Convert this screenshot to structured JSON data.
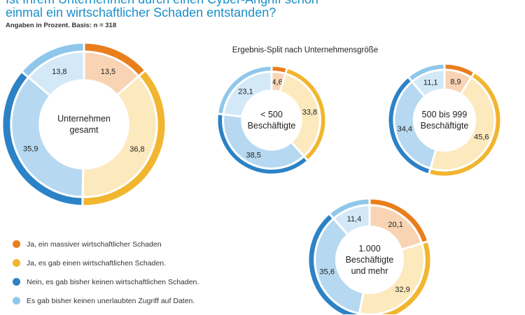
{
  "header": {
    "title_line1": "Ist Ihrem Unternehmen durch einen Cyber-Angriff schon",
    "title_line2": "einmal ein wirtschaftlicher Schaden entstanden?",
    "subtitle": "Angaben in Prozent. Basis: n = 318"
  },
  "split_title": "Ergebnis-Split nach Unternehmensgröße",
  "legend": [
    {
      "label": "Ja, ein massiver wirtschaftlicher Schaden",
      "color": "#e97e1c"
    },
    {
      "label": "Ja, es gab einen wirtschaftlichen Schaden.",
      "color": "#f1b52f"
    },
    {
      "label": "Nein, es gab bisher keinen wirtschaftlichen Schaden.",
      "color": "#2c82c6"
    },
    {
      "label": "Es gab bisher keinen unerlaubten Zugriff auf Daten.",
      "color": "#8fc7ea"
    }
  ],
  "chart_data": [
    {
      "type": "pie",
      "center_label": [
        "Unternehmen",
        "gesamt"
      ],
      "categories": [
        "Ja, ein massiver wirtschaftlicher Schaden",
        "Ja, es gab einen wirtschaftlichen Schaden.",
        "Nein, es gab bisher keinen wirtschaftlichen Schaden.",
        "Es gab bisher keinen unerlaubten Zugriff auf Daten."
      ],
      "values": [
        13.5,
        36.8,
        35.9,
        13.8
      ],
      "labels": [
        "13,5",
        "36,8",
        "35,9",
        "13,8"
      ]
    },
    {
      "type": "pie",
      "center_label": [
        "< 500",
        "Beschäftigte"
      ],
      "categories": [
        "Ja, ein massiver wirtschaftlicher Schaden",
        "Ja, es gab einen wirtschaftlichen Schaden.",
        "Nein, es gab bisher keinen wirtschaftlichen Schaden.",
        "Es gab bisher keinen unerlaubten Zugriff auf Daten."
      ],
      "values": [
        4.6,
        33.8,
        38.5,
        23.1
      ],
      "labels": [
        "4,6",
        "33,8",
        "38,5",
        "23,1"
      ]
    },
    {
      "type": "pie",
      "center_label": [
        "500 bis 999",
        "Beschäftigte"
      ],
      "categories": [
        "Ja, ein massiver wirtschaftlicher Schaden",
        "Ja, es gab einen wirtschaftlichen Schaden.",
        "Nein, es gab bisher keinen wirtschaftlichen Schaden.",
        "Es gab bisher keinen unerlaubten Zugriff auf Daten."
      ],
      "values": [
        8.9,
        45.6,
        34.4,
        11.1
      ],
      "labels": [
        "8,9",
        "45,6",
        "34,4",
        "11,1"
      ]
    },
    {
      "type": "pie",
      "center_label": [
        "1.000",
        "Beschäftigte",
        "und mehr"
      ],
      "categories": [
        "Ja, ein massiver wirtschaftlicher Schaden",
        "Ja, es gab einen wirtschaftlichen Schaden.",
        "Nein, es gab bisher keinen wirtschaftlichen Schaden.",
        "Es gab bisher keinen unerlaubten Zugriff auf Daten."
      ],
      "values": [
        20.1,
        32.9,
        35.6,
        11.4
      ],
      "labels": [
        "20,1",
        "32,9",
        "35,6",
        "11,4"
      ]
    }
  ]
}
